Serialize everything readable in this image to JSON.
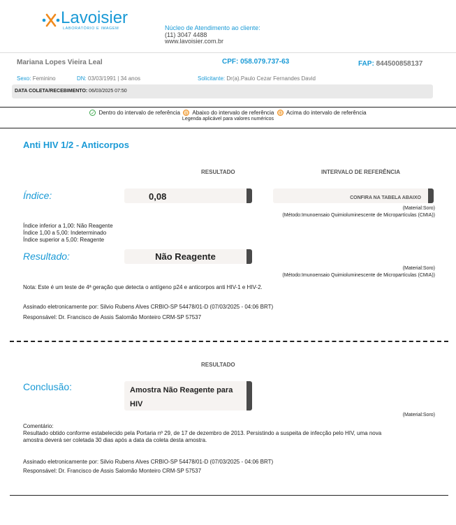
{
  "header": {
    "logo_name": "Lavoisier",
    "logo_subtitle": "LABORATÓRIO E IMAGEM",
    "contact_label": "Núcleo de Atendimento ao cliente:",
    "phone": "(11) 3047 4488",
    "website": "www.lavoisier.com.br"
  },
  "patient": {
    "name": "Mariana Lopes Vieira Leal",
    "cpf_label": "CPF:",
    "cpf": "058.079.737-63",
    "fap_label": "FAP:",
    "fap": "844500858137",
    "sexo_label": "Sexo:",
    "sexo": "Feminino",
    "dn_label": "DN:",
    "dn": "03/03/1991 | 34 anos",
    "solicitante_label": "Solicitante:",
    "solicitante": "Dr(a).Paulo Cezar Fernandes David",
    "coleta_label": "DATA COLETA/RECEBIMENTO:",
    "coleta": "06/03/2025 07:50"
  },
  "legend": {
    "within": "Dentro do intervalo de referência",
    "below": "Abaixo do intervalo de referência",
    "above": "Acima do intervalo de referência",
    "note": "Legenda aplicável para valores numéricos",
    "colors": {
      "within": "#3aa64a",
      "below": "#f08a1c",
      "above": "#f08a1c"
    }
  },
  "exam1": {
    "title": "Anti HIV 1/2 - Anticorpos",
    "col_result": "RESULTADO",
    "col_ref": "INTERVALO DE REFERÊNCIA",
    "indice_label": "Índice:",
    "indice_value": "0,08",
    "indice_ref": "CONFIRA NA TABELA ABAIXO",
    "material": "(Material:Soro)",
    "metodo": "(Método:Imunoensaio Quimioluminescente de Micropartículas (CMIA))",
    "ref_lines": [
      "Índice inferior a 1,00: Não Reagente",
      "Índice 1,00 a 5,00: Indeterminado",
      "Índice superior a 5,00: Reagente"
    ],
    "resultado_label": "Resultado:",
    "resultado_value": "Não Reagente",
    "material2": "(Material:Soro)",
    "metodo2": "(Método:Imunoensaio Quimioluminescente de Micropartículas (CMIA))",
    "nota": "Nota: Este é um teste de 4ª geração que detecta o antígeno p24 e anticorpos anti HIV-1 e HIV-2.",
    "signed": "Assinado eletronicamente por: Silvio Rubens Alves CRBIO-SP 54478/01-D (07/03/2025 - 04:06 BRT)",
    "responsavel": "Responsável: Dr. Francisco de Assis Salomão Monteiro CRM-SP 57537"
  },
  "exam2": {
    "col_result": "RESULTADO",
    "conclusao_label": "Conclusão:",
    "conclusao_line1": "Amostra Não Reagente para",
    "conclusao_line2": "HIV",
    "material": "(Material:Soro)",
    "comentario_label": "Comentário:",
    "comentario_line1": "Resultado obtido conforme estabelecido pela Portaria nº 29, de 17 de dezembro de 2013. Persistindo a suspeita de infecção pelo HIV, uma nova",
    "comentario_line2": "amostra deverá ser coletada 30 dias após a data da coleta desta amostra.",
    "signed": "Assinado eletronicamente por: Silvio Rubens Alves CRBIO-SP 54478/01-D (07/03/2025 - 04:06 BRT)",
    "responsavel": "Responsável: Dr. Francisco de Assis Salomão Monteiro CRM-SP 57537"
  }
}
